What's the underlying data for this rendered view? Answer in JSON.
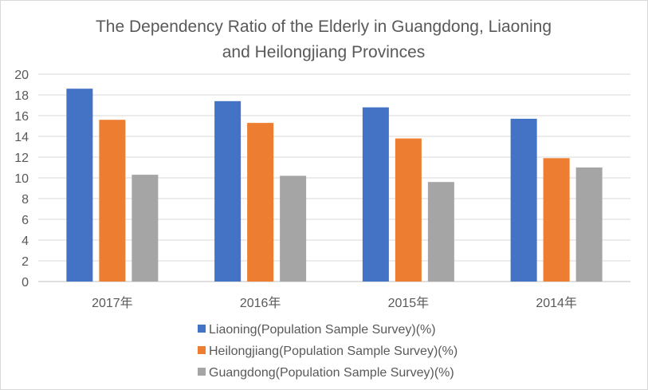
{
  "chart_data": {
    "type": "bar",
    "title_lines": [
      "The Dependency Ratio of the Elderly in Guangdong, Liaoning",
      "and Heilongjiang Provinces"
    ],
    "categories": [
      "2017年",
      "2016年",
      "2015年",
      "2014年"
    ],
    "series": [
      {
        "name": "Liaoning(Population Sample Survey)(%)",
        "values": [
          18.6,
          17.4,
          16.8,
          15.7
        ],
        "color": "#4472c4"
      },
      {
        "name": "Heilongjiang(Population Sample Survey)(%)",
        "values": [
          15.6,
          15.3,
          13.8,
          11.9
        ],
        "color": "#ed7d31"
      },
      {
        "name": "Guangdong(Population Sample Survey)(%)",
        "values": [
          10.3,
          10.2,
          9.6,
          11.0
        ],
        "color": "#a5a5a5"
      }
    ],
    "ylim": [
      0,
      20
    ],
    "yticks": [
      0,
      2,
      4,
      6,
      8,
      10,
      12,
      14,
      16,
      18,
      20
    ],
    "grid": true,
    "legend_position": "bottom"
  }
}
